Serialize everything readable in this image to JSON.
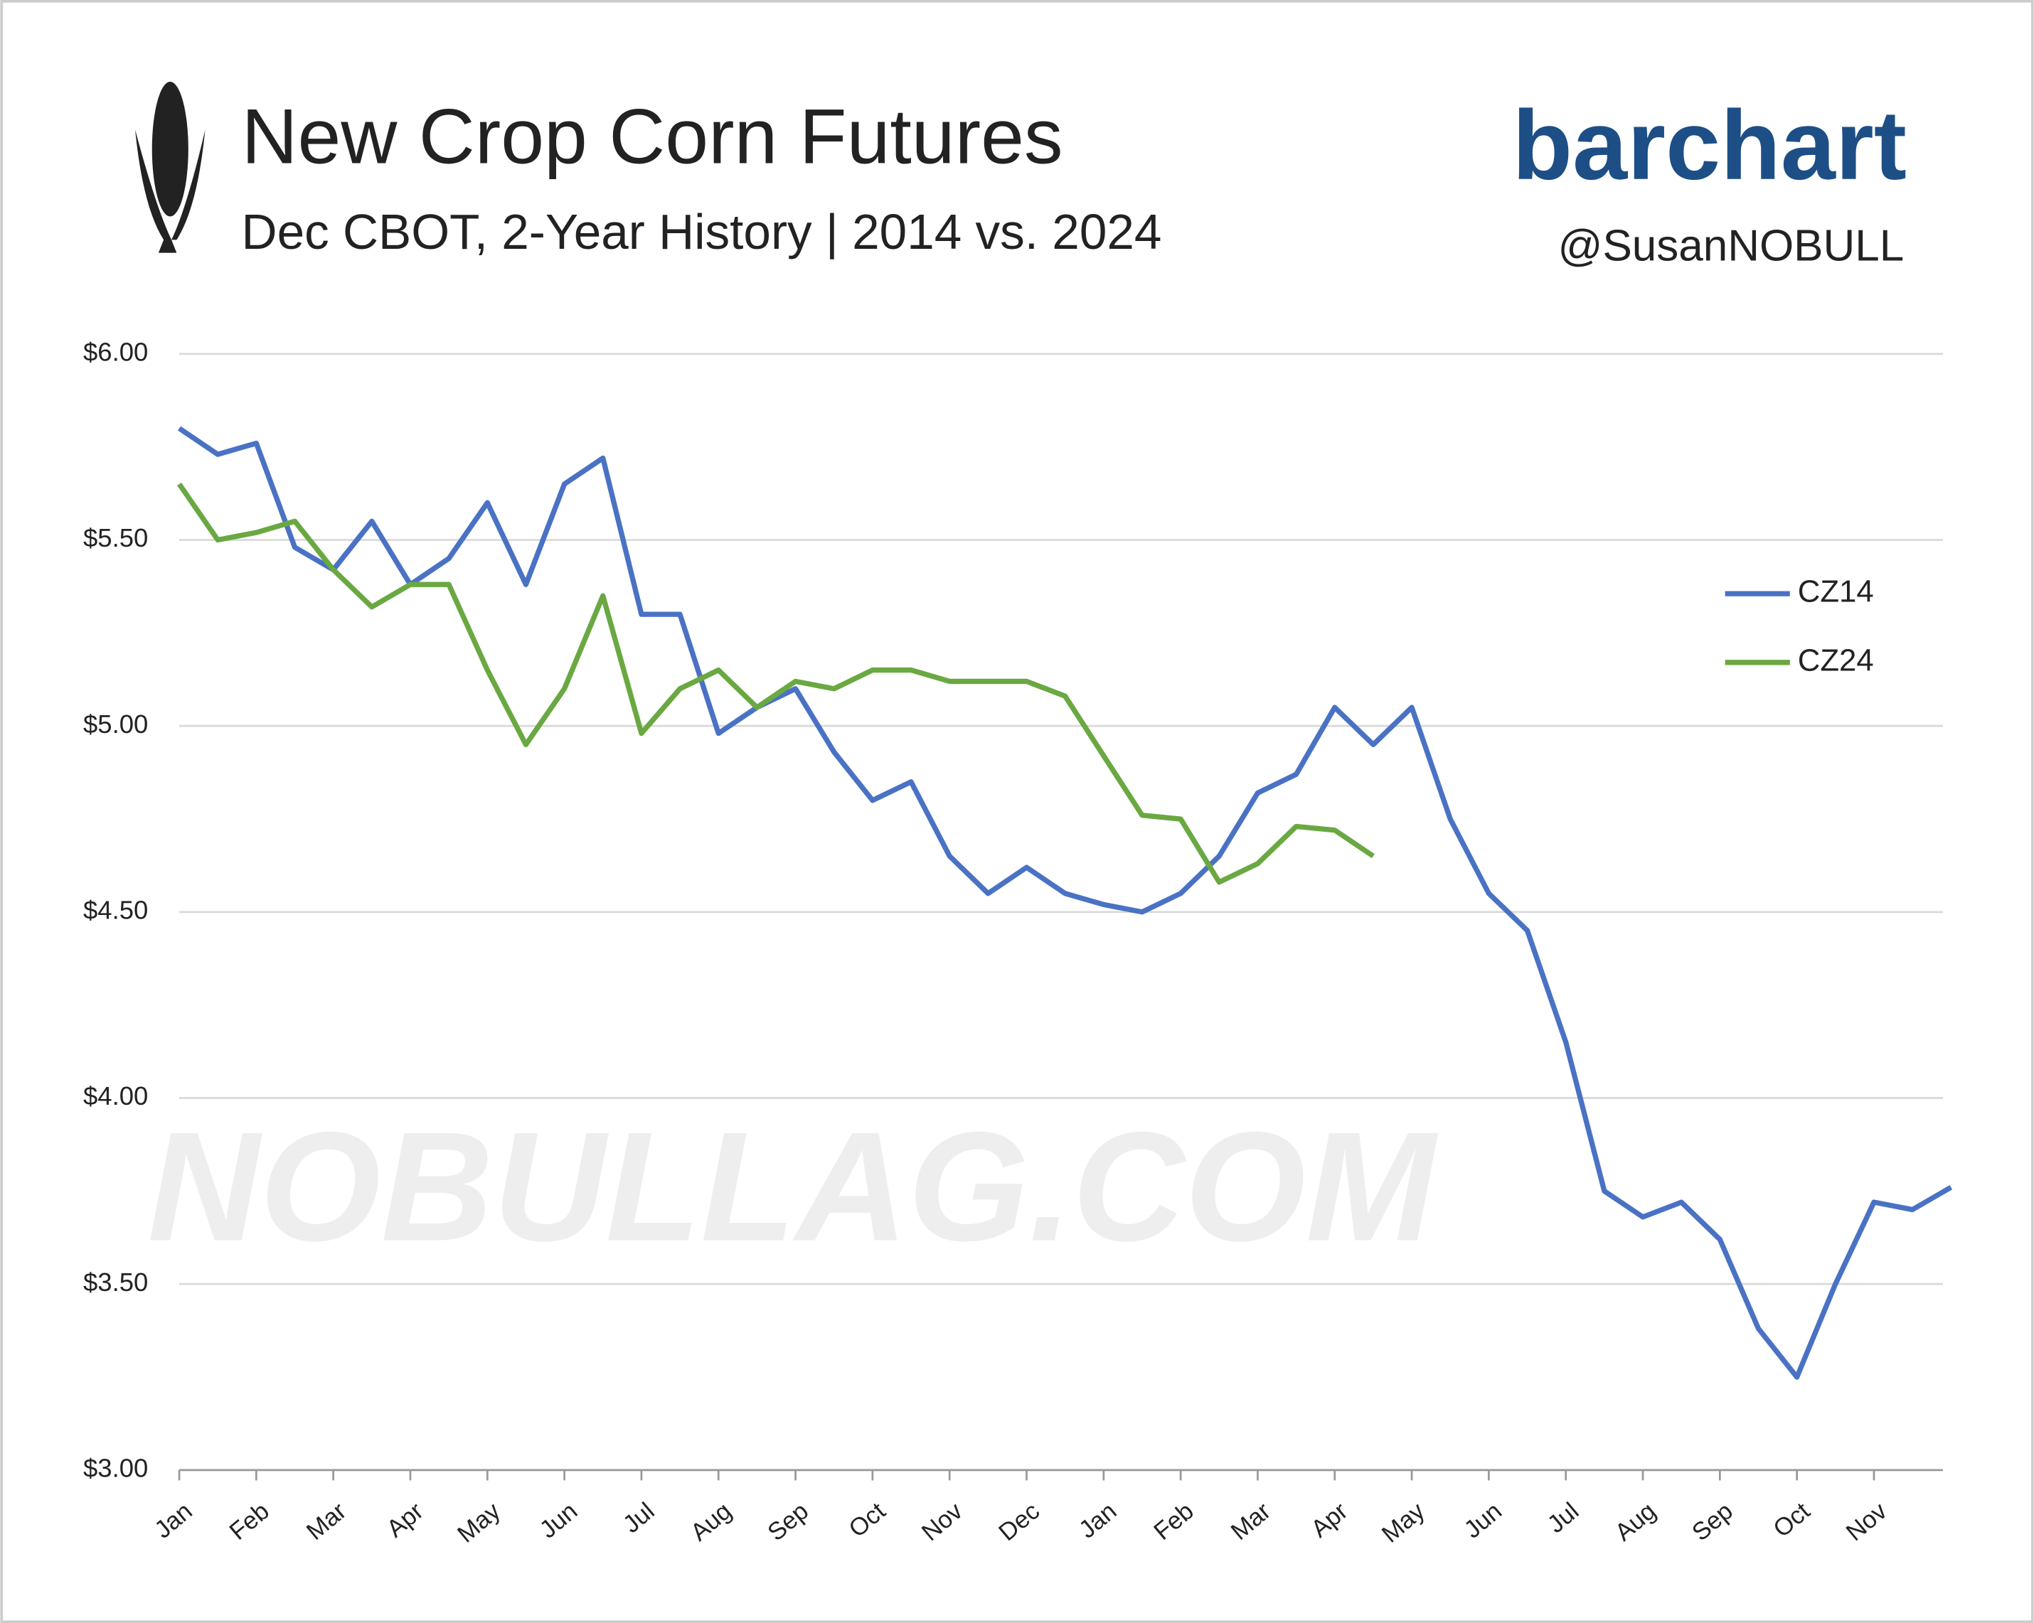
{
  "header": {
    "title": "New Crop Corn Futures",
    "subtitle": "Dec CBOT, 2-Year History | 2014 vs. 2024",
    "brand": "barchart",
    "handle": "@SusanNOBULL",
    "watermark": "NOBULLAG.COM"
  },
  "chart_data": {
    "type": "line",
    "categories": [
      "Jan",
      null,
      "Feb",
      null,
      "Mar",
      null,
      "Apr",
      null,
      "May",
      null,
      "Jun",
      null,
      "Jul",
      null,
      "Aug",
      null,
      "Sep",
      null,
      "Oct",
      null,
      "Nov",
      null,
      "Dec",
      null,
      "Jan",
      null,
      "Feb",
      null,
      "Mar",
      null,
      "Apr",
      null,
      "May",
      null,
      "Jun",
      null,
      "Jul",
      null,
      "Aug",
      null,
      "Sep",
      null,
      "Oct",
      null,
      "Nov",
      null,
      null
    ],
    "series": [
      {
        "name": "CZ14",
        "color": "#4a72c4",
        "values": [
          5.8,
          5.73,
          5.76,
          5.48,
          5.42,
          5.55,
          5.38,
          5.45,
          5.6,
          5.38,
          5.65,
          5.72,
          5.3,
          5.3,
          4.98,
          5.05,
          5.1,
          4.93,
          4.8,
          4.85,
          4.65,
          4.55,
          4.62,
          4.55,
          4.52,
          4.5,
          4.55,
          4.65,
          4.82,
          4.87,
          5.05,
          4.95,
          5.05,
          4.75,
          4.55,
          4.45,
          4.15,
          3.75,
          3.68,
          3.72,
          3.62,
          3.38,
          3.25,
          3.5,
          3.72,
          3.7,
          3.76
        ]
      },
      {
        "name": "CZ24",
        "color": "#6aa842",
        "values": [
          5.65,
          5.5,
          5.52,
          5.55,
          5.42,
          5.32,
          5.38,
          5.38,
          5.15,
          4.95,
          5.1,
          5.35,
          4.98,
          5.1,
          5.15,
          5.05,
          5.12,
          5.1,
          5.15,
          5.15,
          5.12,
          5.12,
          5.12,
          5.08,
          4.92,
          4.76,
          4.75,
          4.58,
          4.63,
          4.73,
          4.72,
          4.65,
          null,
          null,
          null,
          null,
          null,
          null,
          null,
          null,
          null,
          null,
          null,
          null,
          null,
          null,
          null
        ]
      }
    ],
    "ylim": [
      3,
      6
    ],
    "yticks": [
      {
        "value": 3,
        "label": "$3.00"
      },
      {
        "value": 3.5,
        "label": "$3.50"
      },
      {
        "value": 4,
        "label": "$4.00"
      },
      {
        "value": 4.5,
        "label": "$4.50"
      },
      {
        "value": 5,
        "label": "$5.00"
      },
      {
        "value": 5.5,
        "label": "$5.50"
      },
      {
        "value": 6,
        "label": "$6.00"
      }
    ],
    "grid": true,
    "legend": "right"
  }
}
